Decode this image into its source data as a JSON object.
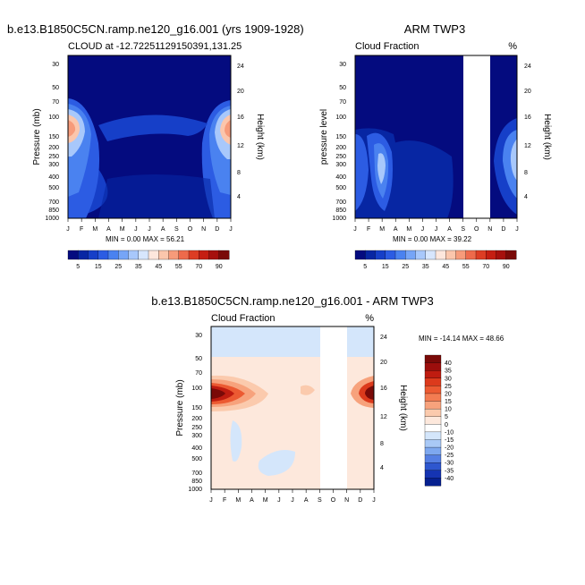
{
  "chart_data": [
    {
      "type": "contour",
      "title": "b.e13.B1850C5CN.ramp.ne120_g16.001 (yrs 1909-1928)",
      "subtitle_left": "CLOUD at -12.72251129150391,131.25",
      "subtitle_right": "",
      "xlabel": "",
      "ylabel": "Pressure (mb)",
      "ylabel_right": "Height (km)",
      "x_ticks": [
        "J",
        "F",
        "M",
        "A",
        "M",
        "J",
        "J",
        "A",
        "S",
        "O",
        "N",
        "D",
        "J"
      ],
      "y_ticks": [
        "30",
        "50",
        "70",
        "100",
        "150",
        "200",
        "250",
        "300",
        "400",
        "500",
        "700",
        "850",
        "1000"
      ],
      "y_ticks_right": [
        "24",
        "20",
        "16",
        "12",
        "8",
        "4"
      ],
      "ylim_mb": [
        1000,
        20
      ],
      "stats": "MIN =   0.00 MAX =  56.21",
      "min": 0.0,
      "max": 56.21,
      "colorbar_labels": [
        "5",
        "15",
        "25",
        "35",
        "45",
        "55",
        "70",
        "90"
      ],
      "field_desc": "clouds peak ~56% near 130 mb in Jan-Feb and Dec-Jan; weak low-level cloud (~15-25%) all year; near-zero above 70 mb"
    },
    {
      "type": "contour",
      "title": "ARM TWP3",
      "subtitle_left": "Cloud Fraction",
      "subtitle_right": "%",
      "xlabel": "",
      "ylabel": "pressure level",
      "ylabel_right": "Height (km)",
      "x_ticks": [
        "J",
        "F",
        "M",
        "A",
        "M",
        "J",
        "J",
        "A",
        "S",
        "O",
        "N",
        "D",
        "J"
      ],
      "y_ticks": [
        "30",
        "50",
        "70",
        "100",
        "150",
        "200",
        "250",
        "300",
        "400",
        "500",
        "700",
        "850",
        "1000"
      ],
      "y_ticks_right": [
        "24",
        "20",
        "16",
        "12",
        "8",
        "4"
      ],
      "ylim_mb": [
        1000,
        20
      ],
      "stats": "MIN =   0.00 MAX =  39.22",
      "min": 0.0,
      "max": 39.22,
      "missing_months": [
        "S",
        "O"
      ],
      "colorbar_labels": [
        "5",
        "15",
        "25",
        "35",
        "45",
        "55",
        "70",
        "90"
      ],
      "field_desc": "observed cloud fraction peaks ~39% around 200-250 mb in March and in December; no data Sep-Oct"
    },
    {
      "type": "contour",
      "title": "b.e13.B1850C5CN.ramp.ne120_g16.001 - ARM TWP3",
      "subtitle_left": "Cloud Fraction",
      "subtitle_right": "%",
      "xlabel": "",
      "ylabel": "Pressure (mb)",
      "ylabel_right": "Height (km)",
      "x_ticks": [
        "J",
        "F",
        "M",
        "A",
        "M",
        "J",
        "J",
        "A",
        "S",
        "O",
        "N",
        "D",
        "J"
      ],
      "y_ticks": [
        "30",
        "50",
        "70",
        "100",
        "150",
        "200",
        "250",
        "300",
        "400",
        "500",
        "700",
        "850",
        "1000"
      ],
      "y_ticks_right": [
        "24",
        "20",
        "16",
        "12",
        "8",
        "4"
      ],
      "ylim_mb": [
        1000,
        20
      ],
      "stats": "MIN = -14.14 MAX =  48.66",
      "min": -14.14,
      "max": 48.66,
      "missing_months": [
        "S",
        "O"
      ],
      "colorbar_labels": [
        "40",
        "35",
        "30",
        "25",
        "20",
        "15",
        "10",
        "5",
        "0",
        "-10",
        "-15",
        "-20",
        "-25",
        "-30",
        "-35",
        "-40"
      ],
      "field_desc": "positive difference up to ~49% near 110 mb in Jan-Feb and Dec; slight negative (-5 to -10) above 50 mb and in patches below 300 mb"
    }
  ],
  "colors": {
    "seq_palette": [
      "#040b7f",
      "#0726a3",
      "#163fc8",
      "#2c5ce3",
      "#4a82f0",
      "#76a5f7",
      "#a8c8fb",
      "#d7e6fd",
      "#fde7dd",
      "#fbc6ac",
      "#f79b7a",
      "#ee6a4b",
      "#dd3d24",
      "#c51e12",
      "#a6100d",
      "#7a0a08"
    ],
    "div_palette": [
      "#7a0a08",
      "#9c0e0c",
      "#bf1c10",
      "#dc3a1c",
      "#ec5a32",
      "#f37c52",
      "#f7a27c",
      "#fbcaad",
      "#fde8dc",
      "#ffffff",
      "#d4e6fb",
      "#a9c9f6",
      "#7ea8ef",
      "#557fe3",
      "#2e57cf",
      "#1534b2",
      "#06208f"
    ]
  }
}
